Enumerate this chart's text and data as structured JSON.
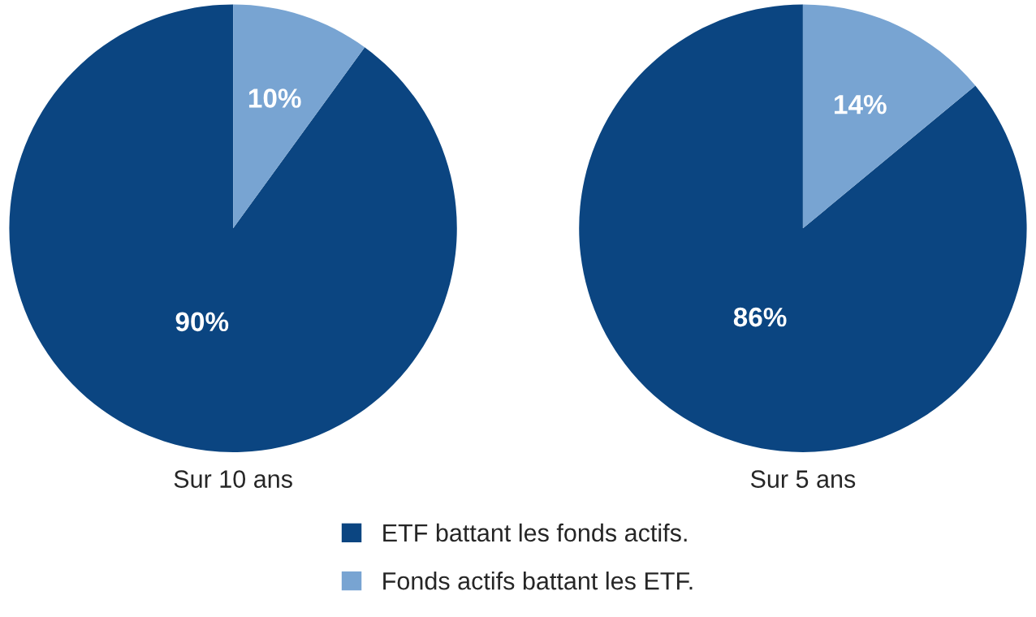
{
  "chart_data": [
    {
      "type": "pie",
      "xlabel": "Sur 10 ans",
      "categories": [
        "ETF battant les fonds actifs.",
        "Fonds actifs battant les ETF."
      ],
      "values": [
        90,
        10
      ],
      "colors": [
        "#0b4581",
        "#78a4d2"
      ],
      "value_labels": [
        "90%",
        "10%"
      ],
      "legend": "bottom"
    },
    {
      "type": "pie",
      "xlabel": "Sur 5 ans",
      "categories": [
        null,
        null
      ],
      "values": [
        86,
        14
      ],
      "colors": [
        "#0b4581",
        "#78a4d2"
      ],
      "value_labels": [
        "86%",
        "14%"
      ]
    }
  ]
}
